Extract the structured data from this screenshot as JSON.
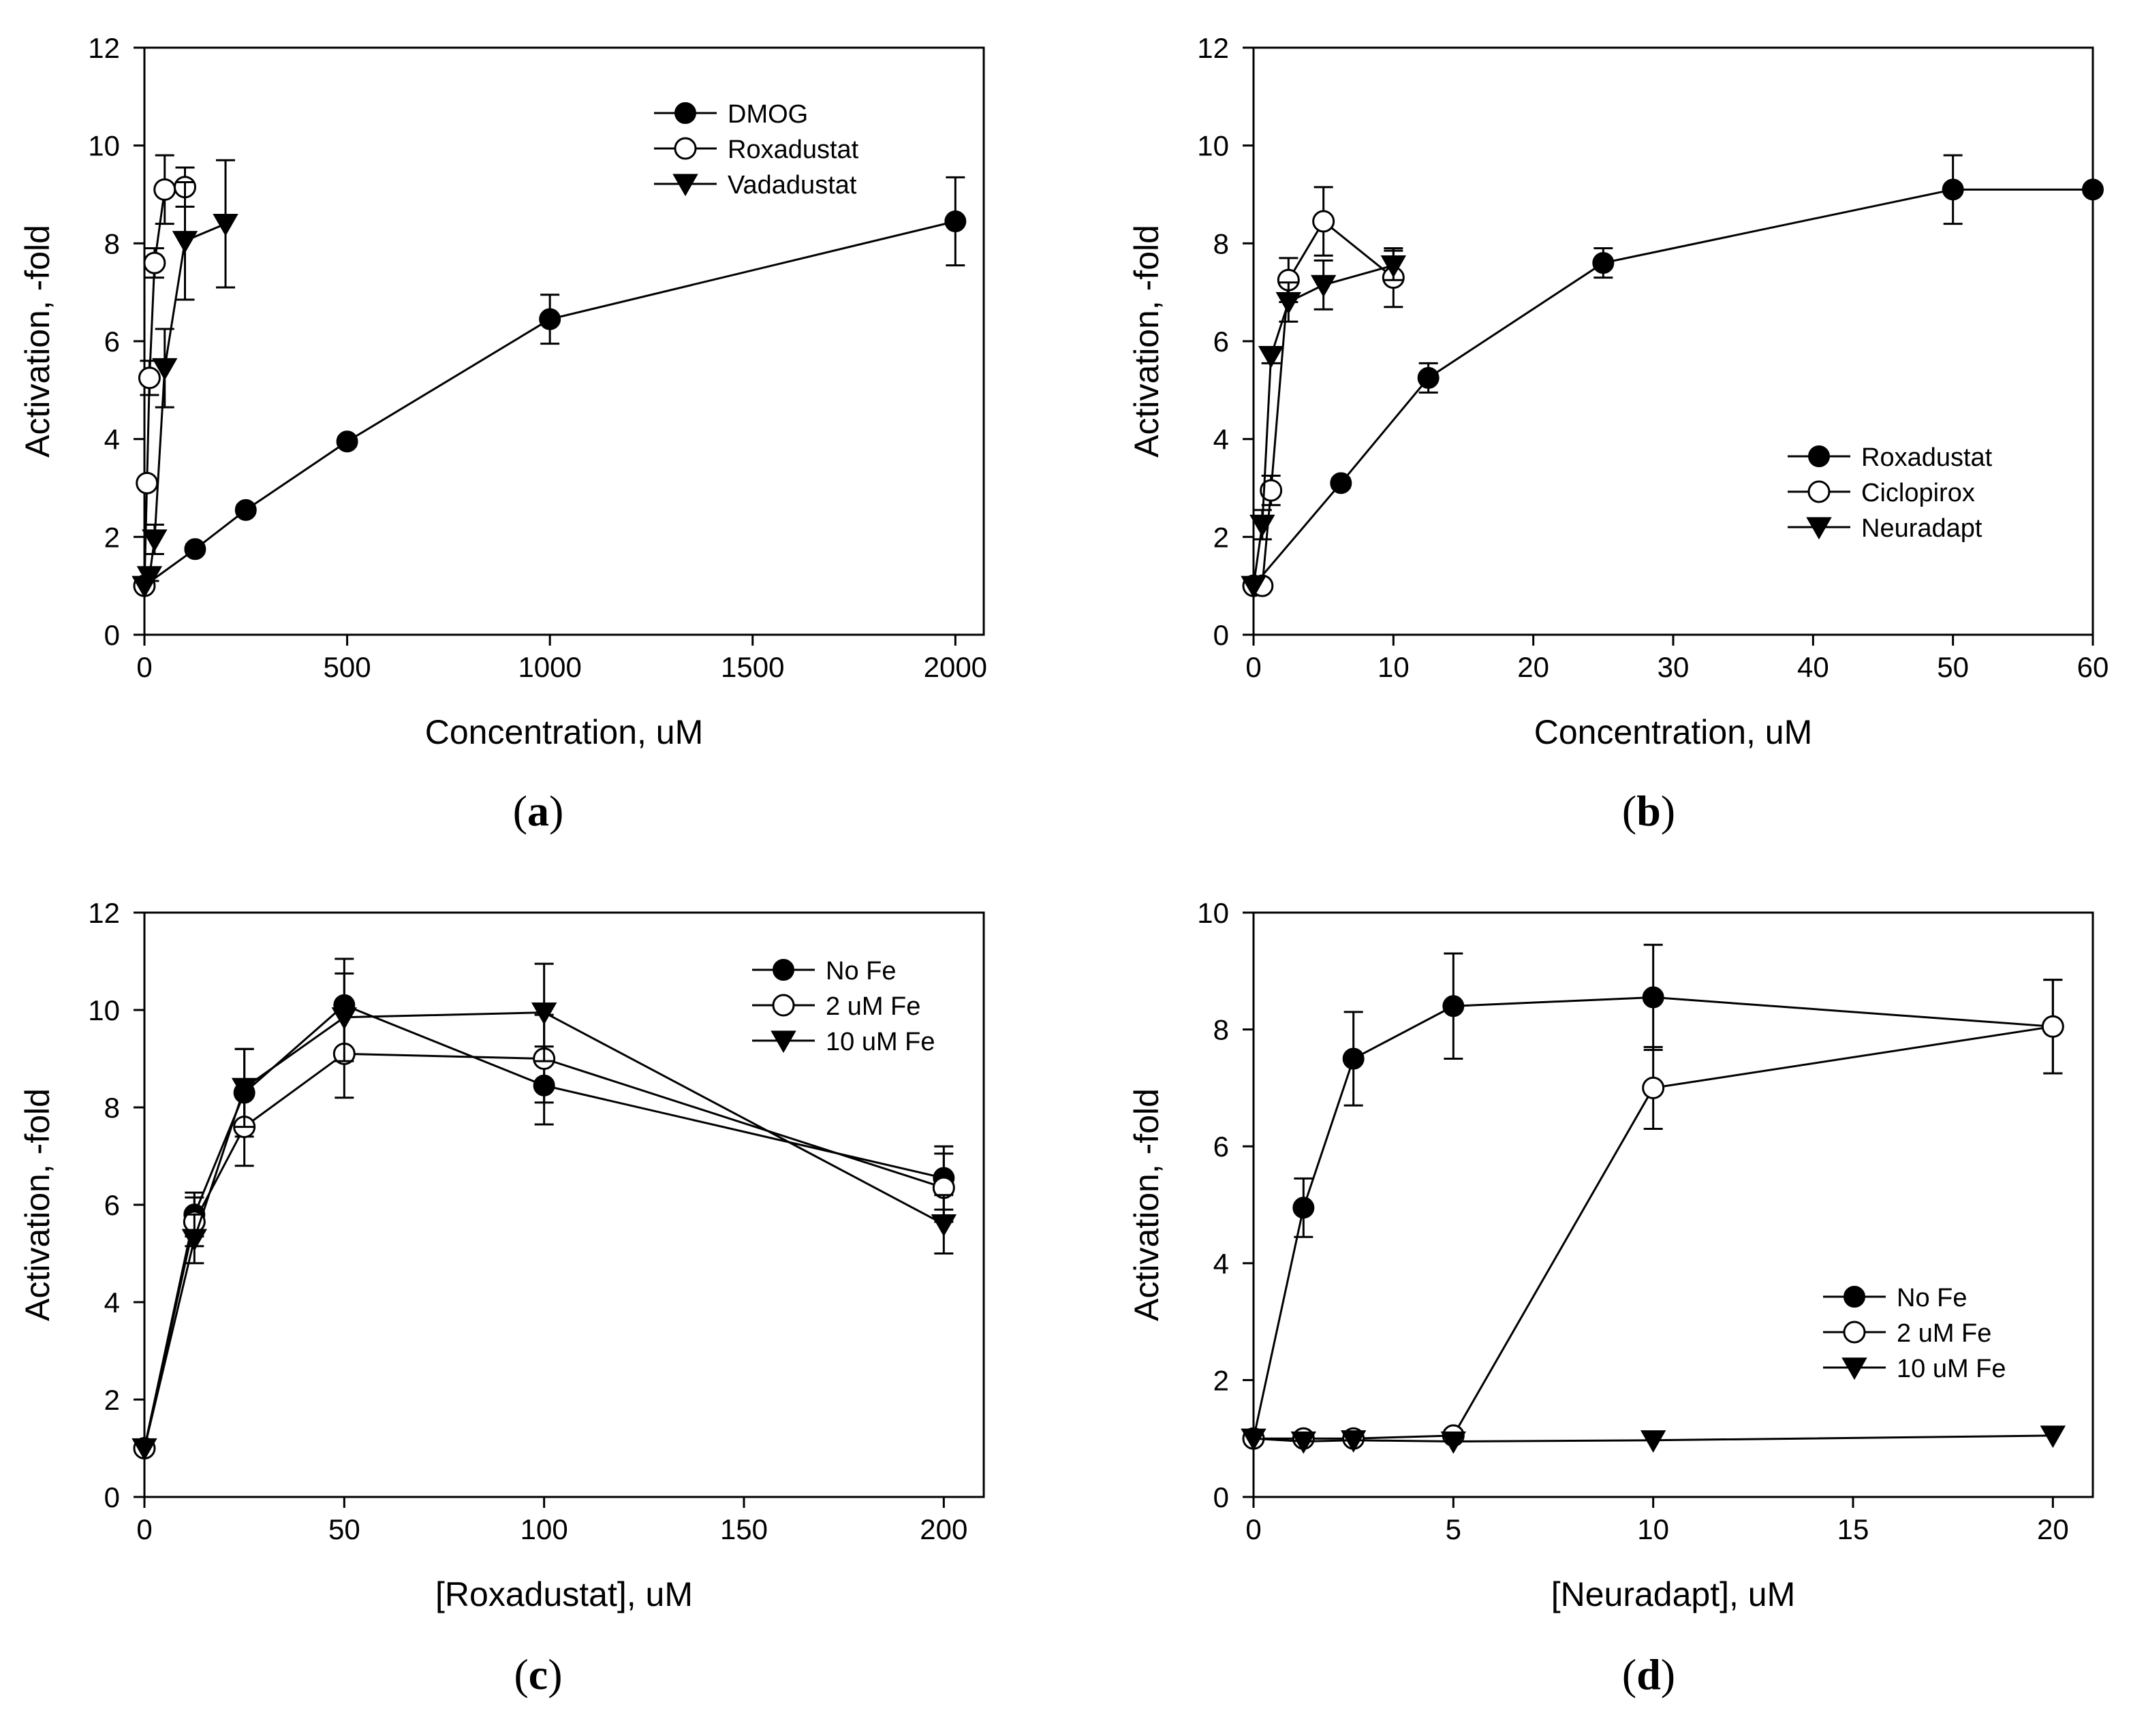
{
  "figure_title": "",
  "chart_data": [
    {
      "id": "a",
      "type": "line",
      "panel_label": {
        "open": "(",
        "letter": "a",
        "close": ")"
      },
      "xlabel": "Concentration, uM",
      "ylabel": "Activation, -fold",
      "xlim": [
        0,
        2070
      ],
      "ylim": [
        0,
        12
      ],
      "xticks": [
        0,
        500,
        1000,
        1500,
        2000
      ],
      "yticks": [
        0,
        2,
        4,
        6,
        8,
        10,
        12
      ],
      "legend_position": "top-right",
      "series": [
        {
          "name": "DMOG",
          "marker": "filled-circle",
          "x": [
            0,
            125,
            250,
            500,
            1000,
            2000
          ],
          "y": [
            1.0,
            1.75,
            2.55,
            3.95,
            6.45,
            8.45
          ],
          "err": [
            0,
            0.1,
            0.1,
            0.1,
            0.5,
            0.9
          ]
        },
        {
          "name": "Roxadustat",
          "marker": "open-circle",
          "x": [
            0,
            6.25,
            12.5,
            25,
            50,
            100
          ],
          "y": [
            1.0,
            3.1,
            5.25,
            7.6,
            9.1,
            9.15
          ],
          "err": [
            0,
            0.1,
            0.35,
            0.3,
            0.7,
            0.4
          ]
        },
        {
          "name": "Vadadustat",
          "marker": "filled-triangle-down",
          "x": [
            0,
            12.5,
            25,
            50,
            100,
            200
          ],
          "y": [
            1.0,
            1.2,
            1.95,
            5.45,
            8.05,
            8.4
          ],
          "err": [
            0,
            0.1,
            0.3,
            0.8,
            1.2,
            1.3
          ]
        }
      ]
    },
    {
      "id": "b",
      "type": "line",
      "panel_label": {
        "open": "(",
        "letter": "b",
        "close": ")"
      },
      "xlabel": "Concentration, uM",
      "ylabel": "Activation, -fold",
      "xlim": [
        0,
        60
      ],
      "ylim": [
        0,
        12
      ],
      "xticks": [
        0,
        10,
        20,
        30,
        40,
        50,
        60
      ],
      "yticks": [
        0,
        2,
        4,
        6,
        8,
        10,
        12
      ],
      "legend_position": "bottom-right",
      "series": [
        {
          "name": "Roxadustat",
          "marker": "filled-circle",
          "x": [
            0,
            6.25,
            12.5,
            25,
            50,
            60
          ],
          "y": [
            1.0,
            3.1,
            5.25,
            7.6,
            9.1,
            9.1
          ],
          "err": [
            0,
            0.1,
            0.3,
            0.3,
            0.7,
            0
          ]
        },
        {
          "name": "Ciclopirox",
          "marker": "open-circle",
          "x": [
            0,
            0.625,
            1.25,
            2.5,
            5,
            10
          ],
          "y": [
            1.0,
            1.0,
            2.95,
            7.25,
            8.45,
            7.3
          ],
          "err": [
            0,
            0,
            0.3,
            0.45,
            0.7,
            0.6
          ]
        },
        {
          "name": "Neuradapt",
          "marker": "filled-triangle-down",
          "x": [
            0,
            0.625,
            1.25,
            2.5,
            5,
            10
          ],
          "y": [
            1.0,
            2.25,
            5.7,
            6.8,
            7.15,
            7.55
          ],
          "err": [
            0,
            0.3,
            0.15,
            0.4,
            0.5,
            0.3
          ]
        }
      ]
    },
    {
      "id": "c",
      "type": "line",
      "panel_label": {
        "open": "(",
        "letter": "c",
        "close": ")"
      },
      "xlabel": "[Roxadustat], uM",
      "ylabel": "Activation, -fold",
      "xlim": [
        0,
        210
      ],
      "ylim": [
        0,
        12
      ],
      "xticks": [
        0,
        50,
        100,
        150,
        200
      ],
      "yticks": [
        0,
        2,
        4,
        6,
        8,
        10,
        12
      ],
      "legend_position": "top-right",
      "series": [
        {
          "name": "No Fe",
          "marker": "filled-circle",
          "x": [
            0,
            12.5,
            25,
            50,
            100,
            200
          ],
          "y": [
            1.0,
            5.8,
            8.3,
            10.1,
            8.45,
            6.55
          ],
          "err": [
            0,
            0.45,
            0.9,
            0.95,
            0.8,
            0.65
          ]
        },
        {
          "name": "2 uM Fe",
          "marker": "open-circle",
          "x": [
            0,
            12.5,
            25,
            50,
            100,
            200
          ],
          "y": [
            1.0,
            5.65,
            7.6,
            9.1,
            9.0,
            6.35
          ],
          "err": [
            0,
            0.5,
            0.8,
            0.9,
            0.9,
            0.7
          ]
        },
        {
          "name": "10 uM Fe",
          "marker": "filled-triangle-down",
          "x": [
            0,
            12.5,
            25,
            50,
            100,
            200
          ],
          "y": [
            1.0,
            5.3,
            8.4,
            9.85,
            9.95,
            5.6
          ],
          "err": [
            0,
            0.5,
            0.8,
            0.9,
            1.0,
            0.6
          ]
        }
      ]
    },
    {
      "id": "d",
      "type": "line",
      "panel_label": {
        "open": "(",
        "letter": "d",
        "close": ")"
      },
      "xlabel": "[Neuradapt], uM",
      "ylabel": "Activation, -fold",
      "xlim": [
        0,
        21
      ],
      "ylim": [
        0,
        10
      ],
      "xticks": [
        0,
        5,
        10,
        15,
        20
      ],
      "yticks": [
        0,
        2,
        4,
        6,
        8,
        10
      ],
      "legend_position": "bottom-right",
      "series": [
        {
          "name": "No Fe",
          "marker": "filled-circle",
          "x": [
            0,
            1.25,
            2.5,
            5,
            10,
            20
          ],
          "y": [
            1.0,
            4.95,
            7.5,
            8.4,
            8.55,
            8.05
          ],
          "err": [
            0,
            0.5,
            0.8,
            0.9,
            0.9,
            0.8
          ]
        },
        {
          "name": "2 uM Fe",
          "marker": "open-circle",
          "x": [
            0,
            1.25,
            2.5,
            5,
            10,
            20
          ],
          "y": [
            1.0,
            1.0,
            1.0,
            1.05,
            7.0,
            8.05
          ],
          "err": [
            0,
            0,
            0,
            0,
            0.7,
            0.8
          ]
        },
        {
          "name": "10 uM Fe",
          "marker": "filled-triangle-down",
          "x": [
            0,
            1.25,
            2.5,
            5,
            10,
            20
          ],
          "y": [
            1.0,
            0.95,
            0.97,
            0.95,
            0.97,
            1.05
          ],
          "err": [
            0,
            0,
            0,
            0,
            0,
            0
          ]
        }
      ]
    }
  ]
}
